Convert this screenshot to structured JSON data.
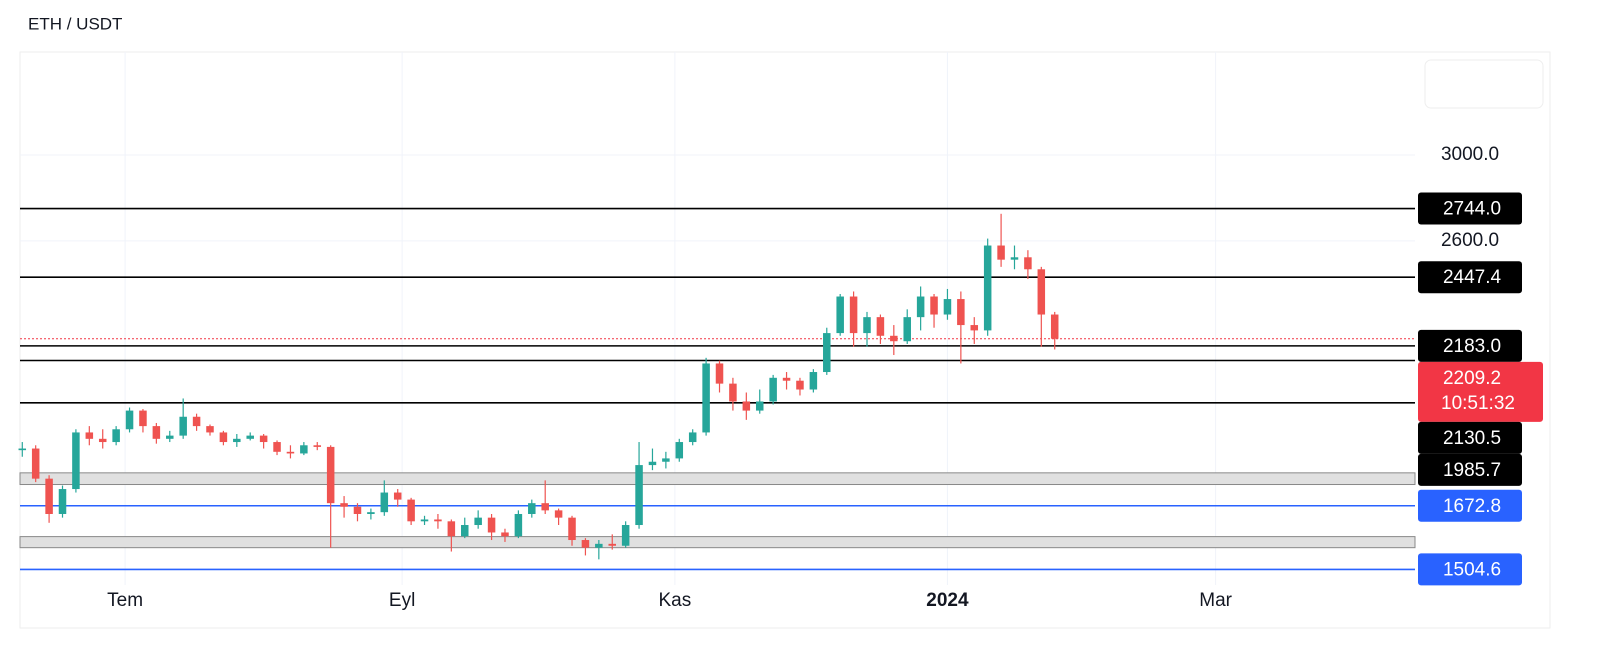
{
  "chart_data": {
    "type": "candlestick",
    "title": "ETH / USDT",
    "up_color": "#26a69a",
    "down_color": "#ef5350",
    "open": [
      1835,
      1840,
      1750,
      1650,
      1720,
      1890,
      1870,
      1860,
      1900,
      1960,
      1910,
      1870,
      1880,
      1940,
      1910,
      1890,
      1860,
      1870,
      1880,
      1860,
      1830,
      1825,
      1850,
      1845,
      1680,
      1670,
      1650,
      1655,
      1710,
      1690,
      1630,
      1635,
      1630,
      1590,
      1620,
      1640,
      1600,
      1590,
      1650,
      1680,
      1660,
      1640,
      1580,
      1560,
      1570,
      1565,
      1620,
      1790,
      1800,
      1810,
      1860,
      1890,
      2120,
      2050,
      1990,
      1960,
      1990,
      2070,
      2060,
      2030,
      2090,
      2230,
      2370,
      2230,
      2290,
      2220,
      2200,
      2290,
      2370,
      2300,
      2360,
      2260,
      2240,
      2580,
      2520,
      2530,
      2480,
      2300
    ],
    "high": [
      1860,
      1850,
      1760,
      1730,
      1900,
      1910,
      1900,
      1910,
      1970,
      1965,
      1920,
      1895,
      2000,
      1950,
      1915,
      1895,
      1885,
      1890,
      1885,
      1865,
      1850,
      1860,
      1860,
      1850,
      1700,
      1680,
      1665,
      1745,
      1720,
      1695,
      1645,
      1650,
      1635,
      1640,
      1660,
      1650,
      1610,
      1660,
      1690,
      1745,
      1665,
      1645,
      1585,
      1580,
      1595,
      1630,
      1860,
      1840,
      1830,
      1870,
      1900,
      2140,
      2130,
      2070,
      2020,
      2030,
      2080,
      2090,
      2070,
      2100,
      2250,
      2380,
      2390,
      2310,
      2300,
      2260,
      2320,
      2410,
      2380,
      2400,
      2390,
      2290,
      2610,
      2720,
      2580,
      2560,
      2490,
      2310
    ],
    "low": [
      1815,
      1740,
      1626,
      1640,
      1710,
      1850,
      1840,
      1850,
      1890,
      1890,
      1855,
      1860,
      1870,
      1895,
      1880,
      1850,
      1845,
      1865,
      1840,
      1820,
      1810,
      1820,
      1835,
      1560,
      1640,
      1630,
      1635,
      1645,
      1670,
      1620,
      1620,
      1610,
      1550,
      1585,
      1610,
      1580,
      1575,
      1585,
      1640,
      1650,
      1620,
      1565,
      1540,
      1530,
      1555,
      1560,
      1610,
      1775,
      1780,
      1800,
      1850,
      1880,
      2020,
      1960,
      1930,
      1950,
      1980,
      2030,
      2010,
      2020,
      2080,
      2220,
      2180,
      2180,
      2190,
      2150,
      2190,
      2240,
      2250,
      2280,
      2120,
      2190,
      2220,
      2490,
      2480,
      2440,
      2180,
      2170
    ],
    "close": [
      1840,
      1750,
      1650,
      1720,
      1890,
      1870,
      1860,
      1900,
      1960,
      1910,
      1870,
      1880,
      1940,
      1910,
      1890,
      1860,
      1870,
      1880,
      1860,
      1830,
      1825,
      1850,
      1845,
      1680,
      1670,
      1650,
      1655,
      1710,
      1690,
      1630,
      1635,
      1630,
      1590,
      1620,
      1640,
      1600,
      1590,
      1650,
      1680,
      1660,
      1640,
      1580,
      1560,
      1570,
      1565,
      1620,
      1790,
      1800,
      1810,
      1860,
      1890,
      2120,
      2050,
      1990,
      1960,
      1990,
      2070,
      2060,
      2030,
      2090,
      2230,
      2370,
      2230,
      2290,
      2220,
      2200,
      2290,
      2370,
      2300,
      2360,
      2260,
      2240,
      2580,
      2520,
      2530,
      2480,
      2300,
      2209.2
    ],
    "xlim": [
      -0.17,
      103.87
    ],
    "xticks": [
      {
        "value": 7.67,
        "label": "Tem"
      },
      {
        "value": 28.33,
        "label": "Eyl"
      },
      {
        "value": 48.67,
        "label": "Kas"
      },
      {
        "value": 69,
        "label": "2024"
      },
      {
        "value": 89,
        "label": "Mar"
      }
    ],
    "ylim": [
      1466,
      3561
    ],
    "yticks": [
      {
        "value": 3000,
        "label": "3000.0"
      },
      {
        "value": 2600,
        "label": "2600.0"
      }
    ],
    "log_scale": true,
    "grid": true,
    "levels": [
      {
        "value": 2744,
        "label": "2744.0",
        "color": "#000000"
      },
      {
        "value": 2447.4,
        "color": "#000000"
      },
      {
        "value": 2183,
        "label": "2183.0",
        "color": "#000000"
      },
      {
        "value": 2130.5,
        "color": "#000000"
      },
      {
        "value": 1985.7,
        "color": "#000000"
      },
      {
        "value": 1672.8,
        "color": "#2962ff"
      },
      {
        "value": 1504.6,
        "color": "#2962ff"
      }
    ],
    "zones": [
      [
        1733,
        1767
      ],
      [
        1560,
        1589
      ]
    ],
    "zone_color": "#e0e0e0",
    "current_price": {
      "value": 2209.2,
      "countdown": "10:51:32",
      "color": "#f23645"
    }
  }
}
